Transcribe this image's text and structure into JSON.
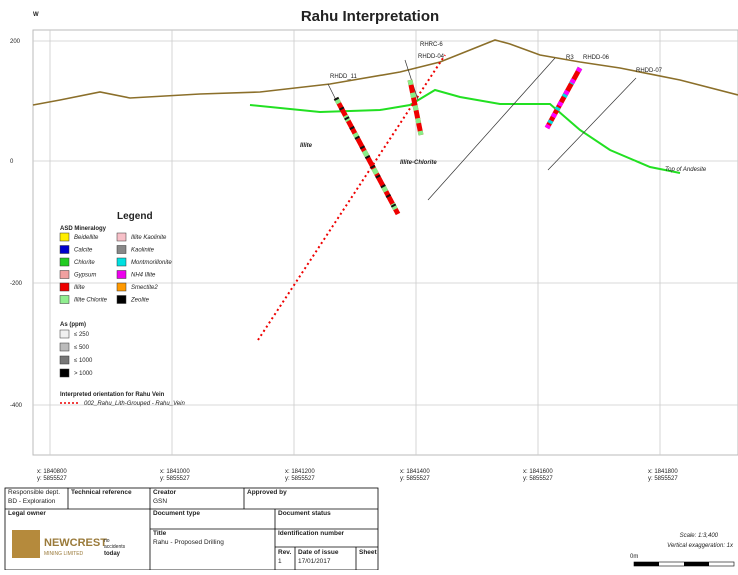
{
  "header": {
    "direction": "W",
    "title": "Rahu Interpretation"
  },
  "elevation_labels": [
    "200",
    "0",
    "-200",
    "-400"
  ],
  "easting_labels": [
    {
      "x": "x: 1840800",
      "y": "y: 5855527"
    },
    {
      "x": "x: 1841000",
      "y": "y: 5855527"
    },
    {
      "x": "x: 1841200",
      "y": "y: 5855527"
    },
    {
      "x": "x: 1841400",
      "y": "y: 5855527"
    },
    {
      "x": "x: 1841600",
      "y": "y: 5855527"
    },
    {
      "x": "x: 1841800",
      "y": "y: 5855527"
    }
  ],
  "holes": [
    "RHDD_11",
    "RHRC-6",
    "RHDD-04",
    "R3",
    "RHDD-06",
    "RHDD-07"
  ],
  "annotations": {
    "illite": "Illite",
    "illite_chlorite": "Illite-Chlorite",
    "andesite": "Top of Andesite"
  },
  "legend": {
    "title": "Legend",
    "mineralogy_title": "ASD Mineralogy",
    "mineralogy": [
      "Beidellite",
      "Calcite",
      "Chlorite",
      "Gypsum",
      "Illite",
      "Illite Chlorite",
      "Illite Kaolinite",
      "Kaolinite",
      "Montmorillonite",
      "NH4 Illite",
      "Smectite2",
      "Zeolite"
    ],
    "as_title": "As (ppm)",
    "as_items": [
      "≤ 250",
      "≤ 500",
      "≤ 1000",
      "> 1000"
    ],
    "vein_title": "Interpreted orientation for Rahu Vein",
    "vein_item": "002_Rahu_Lith-Grouped - Rahu_Vein"
  },
  "title_block": {
    "responsible_dept": "Responsible dept.",
    "dept_value": "BD - Exploration",
    "technical_reference": "Technical reference",
    "creator": "Creator",
    "creator_value": "GSN",
    "approved_by": "Approved by",
    "legal_owner": "Legal owner",
    "document_type": "Document type",
    "document_status": "Document status",
    "title": "Title",
    "title_value": "Rahu - Proposed Drilling",
    "identification_number": "Identification number",
    "rev": "Rev.",
    "rev_value": "1",
    "date_of_issue": "Date of issue",
    "date_value": "17/01/2017",
    "sheet": "Sheet",
    "logo": "NEWCREST",
    "logo_sub": "MINING LIMITED",
    "slogan_1": "no",
    "slogan_2": "accidents",
    "slogan_3": "today"
  },
  "scale": {
    "scale": "Scale: 1:3,400",
    "exaggeration": "Vertical exaggeration: 1x",
    "zero": "0m"
  }
}
